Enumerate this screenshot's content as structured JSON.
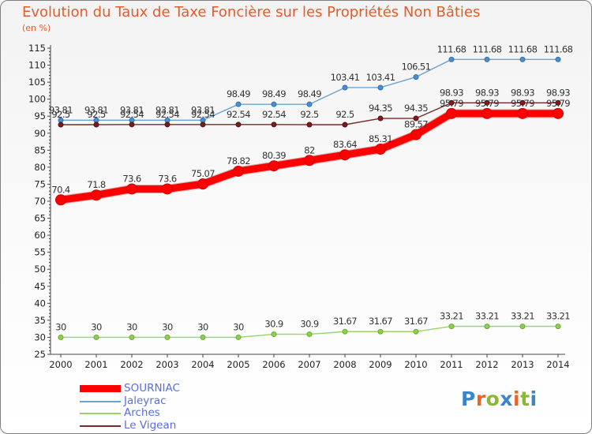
{
  "header": {
    "title": "Evolution du Taux de Taxe Foncière sur les Propriétés Non Bâties",
    "unit": "(en %)"
  },
  "logo": {
    "text": "Proxiti",
    "letter_colors": [
      "#3a86c8",
      "#e8642c",
      "#8ab832",
      "#3a86c8",
      "#e8642c",
      "#8ab832",
      "#3a86c8"
    ]
  },
  "chart_data": {
    "type": "line",
    "x": [
      "2000",
      "2001",
      "2002",
      "2003",
      "2004",
      "2005",
      "2006",
      "2007",
      "2008",
      "2009",
      "2010",
      "2011",
      "2012",
      "2013",
      "2014"
    ],
    "ylim": [
      25,
      115
    ],
    "yticks": [
      25,
      30,
      35,
      40,
      45,
      50,
      55,
      60,
      65,
      70,
      75,
      80,
      85,
      90,
      95,
      100,
      105,
      110,
      115
    ],
    "grid": false,
    "legend_position": "bottom-left",
    "series": [
      {
        "name": "SOURNIAC",
        "color": "#ff0000",
        "values": [
          70.4,
          71.8,
          73.6,
          73.6,
          75.07,
          78.82,
          80.39,
          82,
          83.64,
          85.31,
          89.57,
          95.79,
          95.79,
          95.79,
          95.79
        ],
        "labels": [
          "70.4",
          "71.8",
          "73.6",
          "73.6",
          "75.07",
          "78.82",
          "80.39",
          "82",
          "83.64",
          "85.31",
          "89.57",
          "95.79",
          "95.79",
          "95.79",
          "95.79"
        ]
      },
      {
        "name": "Jaleyrac",
        "color": "#6aa3d5",
        "values": [
          93.81,
          93.81,
          93.81,
          93.81,
          93.81,
          98.49,
          98.49,
          98.49,
          103.41,
          103.41,
          106.51,
          111.68,
          111.68,
          111.68,
          111.68
        ],
        "labels": [
          "93.81",
          "93.81",
          "93.81",
          "93.81",
          "93.81",
          "98.49",
          "98.49",
          "98.49",
          "103.41",
          "103.41",
          "106.51",
          "111.68",
          "111.68",
          "111.68",
          "111.68"
        ]
      },
      {
        "name": "Arches",
        "color": "#9bd36b",
        "values": [
          30,
          30,
          30,
          30,
          30,
          30,
          30.9,
          30.9,
          31.67,
          31.67,
          31.67,
          33.21,
          33.21,
          33.21,
          33.21
        ],
        "labels": [
          "30",
          "30",
          "30",
          "30",
          "30",
          "30",
          "30.9",
          "30.9",
          "31.67",
          "31.67",
          "31.67",
          "33.21",
          "33.21",
          "33.21",
          "33.21"
        ]
      },
      {
        "name": "Le Vigean",
        "color": "#7a2a2a",
        "values": [
          92.5,
          92.5,
          92.54,
          92.54,
          92.54,
          92.54,
          92.54,
          92.5,
          92.5,
          94.35,
          94.35,
          98.93,
          98.93,
          98.93,
          98.93
        ],
        "labels": [
          "92.5",
          "92.5",
          "92.54",
          "92.54",
          "92.54",
          "92.54",
          "92.54",
          "92.5",
          "92.5",
          "94.35",
          "94.35",
          "98.93",
          "98.93",
          "98.93",
          "98.93"
        ]
      }
    ]
  }
}
